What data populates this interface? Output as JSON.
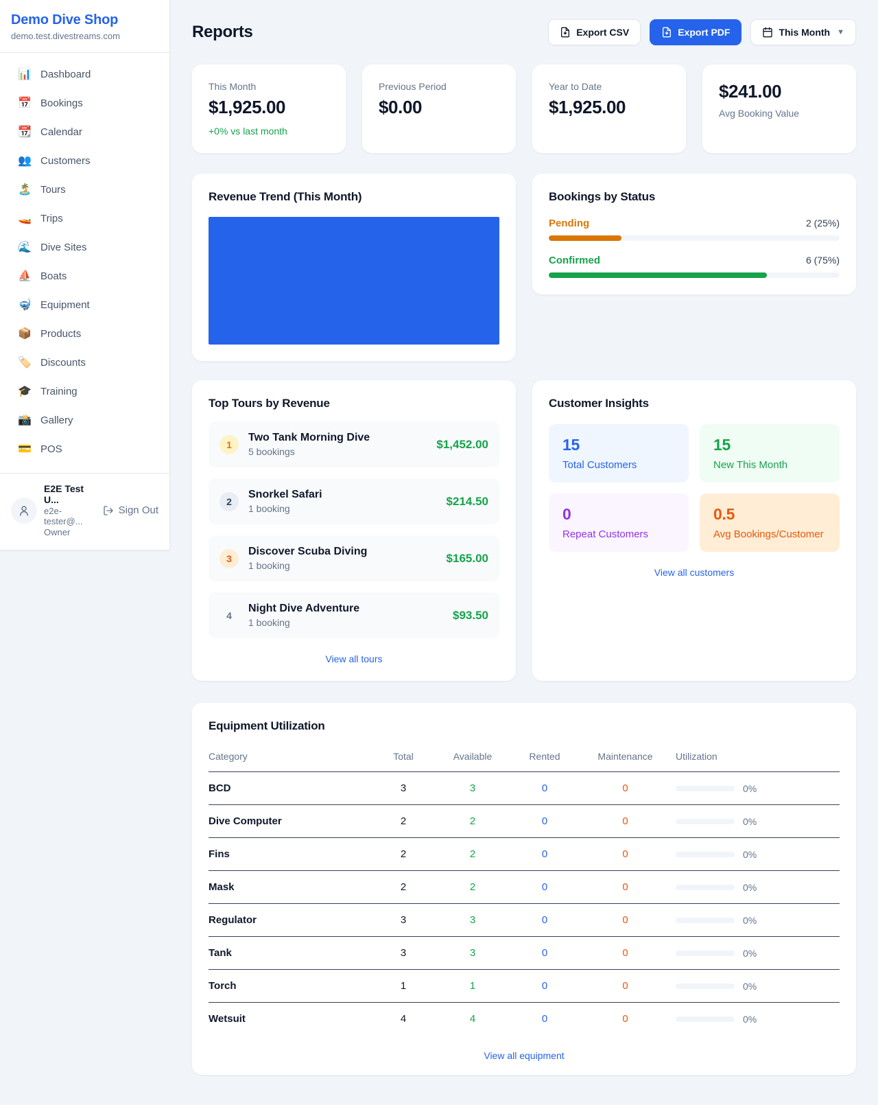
{
  "app": {
    "name": "Demo Dive Shop",
    "domain": "demo.test.divestreams.com"
  },
  "sidebar": {
    "items": [
      {
        "icon": "📊",
        "label": "Dashboard"
      },
      {
        "icon": "📅",
        "label": "Bookings"
      },
      {
        "icon": "📆",
        "label": "Calendar"
      },
      {
        "icon": "👥",
        "label": "Customers"
      },
      {
        "icon": "🏝️",
        "label": "Tours"
      },
      {
        "icon": "🚤",
        "label": "Trips"
      },
      {
        "icon": "🌊",
        "label": "Dive Sites"
      },
      {
        "icon": "⛵",
        "label": "Boats"
      },
      {
        "icon": "🤿",
        "label": "Equipment"
      },
      {
        "icon": "📦",
        "label": "Products"
      },
      {
        "icon": "🏷️",
        "label": "Discounts"
      },
      {
        "icon": "🎓",
        "label": "Training"
      },
      {
        "icon": "📸",
        "label": "Gallery"
      },
      {
        "icon": "💳",
        "label": "POS"
      }
    ],
    "user": {
      "name": "E2E Test U...",
      "email": "e2e-tester@...",
      "role": "Owner",
      "sign_out_label": "Sign Out"
    }
  },
  "header": {
    "title": "Reports",
    "export_csv_label": "Export CSV",
    "export_pdf_label": "Export PDF",
    "period_label": "This Month"
  },
  "stats": [
    {
      "label": "This Month",
      "value": "$1,925.00",
      "delta": "+0% vs last month"
    },
    {
      "label": "Previous Period",
      "value": "$0.00"
    },
    {
      "label": "Year to Date",
      "value": "$1,925.00"
    },
    {
      "label": "Avg Booking Value",
      "value": "$241.00"
    }
  ],
  "revenue_trend": {
    "title": "Revenue Trend (This Month)"
  },
  "chart_data": {
    "type": "bar",
    "title": "Revenue Trend (This Month)",
    "categories": [
      "This Month"
    ],
    "values": [
      1925
    ],
    "xlabel": "",
    "ylabel": "",
    "ylim": [
      0,
      1925
    ],
    "bar_color": "#2563eb",
    "legend": false,
    "grid": false,
    "axes_visible": false,
    "note": "single bar fills entire plot area as a solid blue block"
  },
  "bookings_by_status": {
    "title": "Bookings by Status",
    "rows": [
      {
        "label": "Pending",
        "value": "2 (25%)",
        "pct": 25,
        "color": "#d97706"
      },
      {
        "label": "Confirmed",
        "value": "6 (75%)",
        "pct": 75,
        "color": "#16a34a"
      }
    ]
  },
  "top_tours": {
    "title": "Top Tours by Revenue",
    "view_all_label": "View all tours",
    "items": [
      {
        "rank": "1",
        "name": "Two Tank Morning Dive",
        "bookings": "5 bookings",
        "revenue": "$1,452.00",
        "badge_bg": "#fef3c7",
        "badge_color": "#d97706"
      },
      {
        "rank": "2",
        "name": "Snorkel Safari",
        "bookings": "1 booking",
        "revenue": "$214.50",
        "badge_bg": "#e8edf3",
        "badge_color": "#334155"
      },
      {
        "rank": "3",
        "name": "Discover Scuba Diving",
        "bookings": "1 booking",
        "revenue": "$165.00",
        "badge_bg": "#ffedd5",
        "badge_color": "#ea580c"
      },
      {
        "rank": "4",
        "name": "Night Dive Adventure",
        "bookings": "1 booking",
        "revenue": "$93.50",
        "badge_bg": "transparent",
        "badge_color": "#64748b"
      }
    ]
  },
  "customer_insights": {
    "title": "Customer Insights",
    "view_all_label": "View all customers",
    "tiles": [
      {
        "value": "15",
        "label": "Total Customers",
        "color": "#2563eb",
        "bg": "#eff6ff"
      },
      {
        "value": "15",
        "label": "New This Month",
        "color": "#16a34a",
        "bg": "#f0fdf4"
      },
      {
        "value": "0",
        "label": "Repeat Customers",
        "color": "#9333ea",
        "bg": "#faf5ff"
      },
      {
        "value": "0.5",
        "label": "Avg Bookings/Customer",
        "color": "#ea580c",
        "bg": "#ffedd5"
      }
    ]
  },
  "equipment": {
    "title": "Equipment Utilization",
    "view_all_label": "View all equipment",
    "columns": [
      "Category",
      "Total",
      "Available",
      "Rented",
      "Maintenance",
      "Utilization"
    ],
    "rows": [
      {
        "category": "BCD",
        "total": "3",
        "available": "3",
        "rented": "0",
        "maintenance": "0",
        "utilization": "0%",
        "utilization_pct": 0
      },
      {
        "category": "Dive Computer",
        "total": "2",
        "available": "2",
        "rented": "0",
        "maintenance": "0",
        "utilization": "0%",
        "utilization_pct": 0
      },
      {
        "category": "Fins",
        "total": "2",
        "available": "2",
        "rented": "0",
        "maintenance": "0",
        "utilization": "0%",
        "utilization_pct": 0
      },
      {
        "category": "Mask",
        "total": "2",
        "available": "2",
        "rented": "0",
        "maintenance": "0",
        "utilization": "0%",
        "utilization_pct": 0
      },
      {
        "category": "Regulator",
        "total": "3",
        "available": "3",
        "rented": "0",
        "maintenance": "0",
        "utilization": "0%",
        "utilization_pct": 0
      },
      {
        "category": "Tank",
        "total": "3",
        "available": "3",
        "rented": "0",
        "maintenance": "0",
        "utilization": "0%",
        "utilization_pct": 0
      },
      {
        "category": "Torch",
        "total": "1",
        "available": "1",
        "rented": "0",
        "maintenance": "0",
        "utilization": "0%",
        "utilization_pct": 0
      },
      {
        "category": "Wetsuit",
        "total": "4",
        "available": "4",
        "rented": "0",
        "maintenance": "0",
        "utilization": "0%",
        "utilization_pct": 0
      }
    ]
  },
  "colors": {
    "accent": "#2563eb",
    "positive": "#16a34a",
    "pending": "#d97706",
    "maintenance": "#ea580c",
    "page_bg": "#f1f5f9"
  }
}
